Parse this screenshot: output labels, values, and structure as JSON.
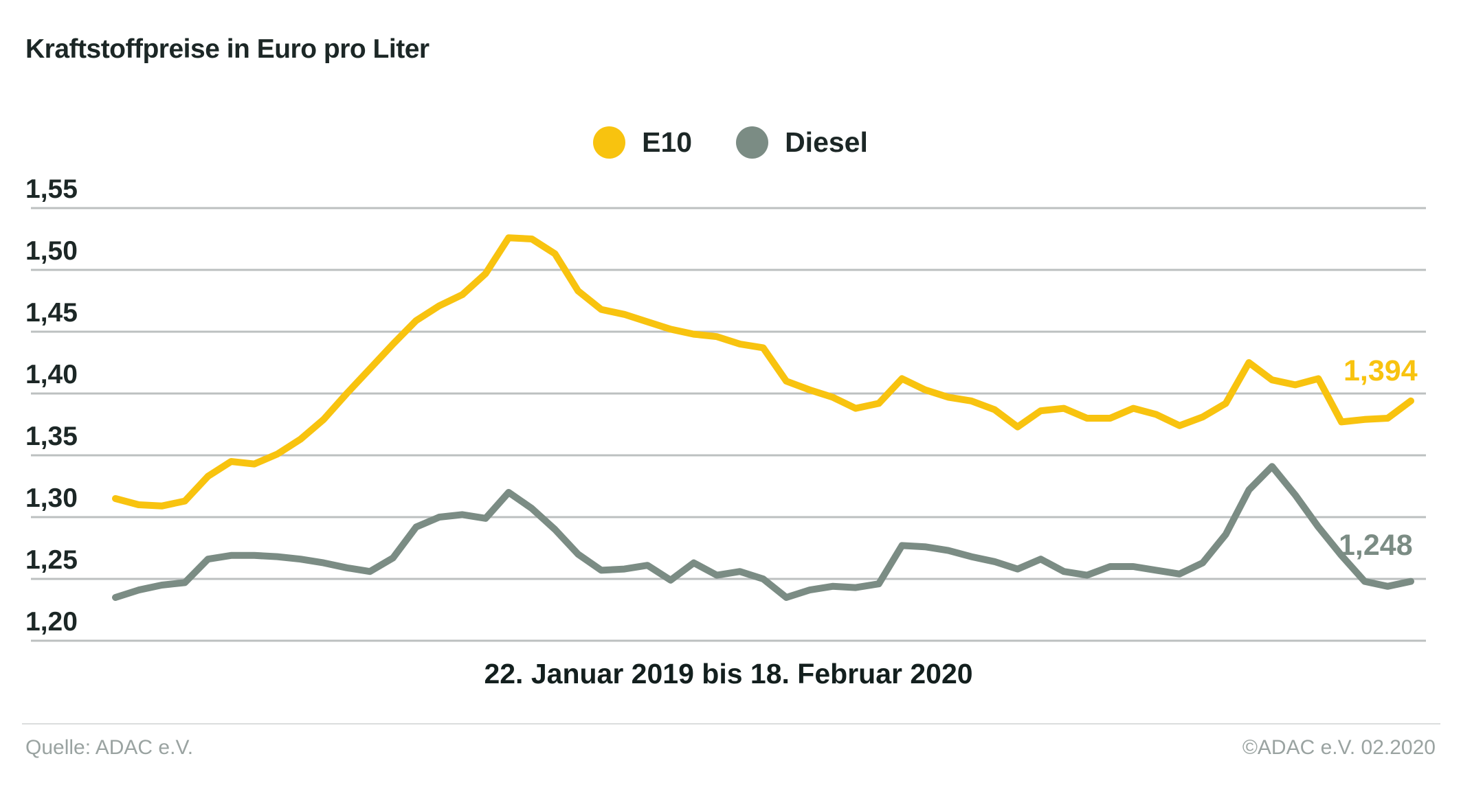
{
  "page": {
    "title": "Kraftstoffpreise in Euro pro Liter"
  },
  "footer": {
    "source": "Quelle: ADAC e.V.",
    "copyright": "©ADAC e.V.  02.2020"
  },
  "colors": {
    "e10": "#f8c30f",
    "diesel": "#7b8c84",
    "gridline": "#bcc0c0",
    "text_dark": "#1c2726",
    "text_muted": "#9aa3a1"
  },
  "chart_data": {
    "type": "line",
    "title": "Kraftstoffpreise in Euro pro Liter",
    "xlabel": "22. Januar 2019 bis 18. Februar 2020",
    "ylabel": "Euro pro Liter",
    "ylim": [
      1.2,
      1.55
    ],
    "ytick_step": 0.05,
    "yticks": [
      "1,55",
      "1,50",
      "1,45",
      "1,40",
      "1,35",
      "1,30",
      "1,25",
      "1,20"
    ],
    "grid": true,
    "legend_position": "top-center",
    "x_unit": "Woche (wöchentliche Werte)",
    "series": [
      {
        "name": "E10",
        "color": "#f8c30f",
        "end_label": "1,394",
        "values": [
          1.315,
          1.31,
          1.309,
          1.313,
          1.333,
          1.345,
          1.343,
          1.351,
          1.363,
          1.379,
          1.4,
          1.42,
          1.44,
          1.459,
          1.471,
          1.48,
          1.497,
          1.526,
          1.525,
          1.513,
          1.483,
          1.468,
          1.464,
          1.458,
          1.452,
          1.448,
          1.446,
          1.44,
          1.437,
          1.41,
          1.403,
          1.397,
          1.388,
          1.392,
          1.412,
          1.403,
          1.397,
          1.394,
          1.387,
          1.373,
          1.386,
          1.388,
          1.38,
          1.38,
          1.388,
          1.383,
          1.374,
          1.381,
          1.392,
          1.425,
          1.411,
          1.407,
          1.412,
          1.377,
          1.379,
          1.38,
          1.394
        ]
      },
      {
        "name": "Diesel",
        "color": "#7b8c84",
        "end_label": "1,248",
        "values": [
          1.235,
          1.241,
          1.245,
          1.247,
          1.266,
          1.269,
          1.269,
          1.268,
          1.266,
          1.263,
          1.259,
          1.256,
          1.267,
          1.292,
          1.3,
          1.302,
          1.299,
          1.32,
          1.307,
          1.29,
          1.27,
          1.257,
          1.258,
          1.261,
          1.249,
          1.263,
          1.253,
          1.256,
          1.25,
          1.235,
          1.241,
          1.244,
          1.243,
          1.246,
          1.277,
          1.276,
          1.273,
          1.268,
          1.264,
          1.258,
          1.266,
          1.256,
          1.253,
          1.26,
          1.26,
          1.257,
          1.254,
          1.263,
          1.286,
          1.322,
          1.341,
          1.318,
          1.292,
          1.269,
          1.248,
          1.244,
          1.248
        ]
      }
    ]
  }
}
